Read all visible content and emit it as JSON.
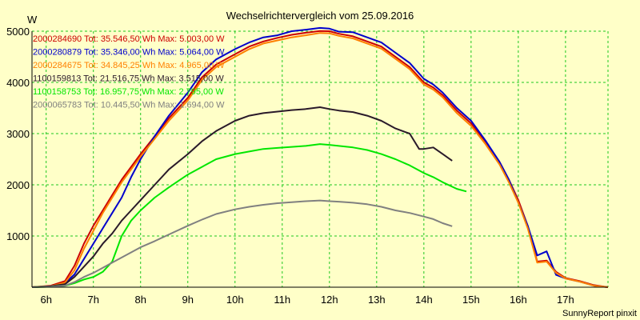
{
  "chart_data": {
    "type": "line",
    "title": "Wechselrichtervergleich vom 25.09.2016",
    "ylabel": "W",
    "footer": "SunnyReport pinxit",
    "ylim": [
      0,
      5000
    ],
    "xlim": [
      5.7,
      17.9
    ],
    "y_ticks": [
      1000,
      2000,
      3000,
      4000,
      5000
    ],
    "y_tick_labels": [
      "1000",
      "2000",
      "3000",
      "4000",
      "5000"
    ],
    "x_ticks": [
      6,
      7,
      8,
      9,
      10,
      11,
      12,
      13,
      14,
      15,
      16,
      17
    ],
    "x_tick_labels": [
      "6h",
      "7h",
      "8h",
      "9h",
      "10h",
      "11h",
      "12h",
      "13h",
      "14h",
      "15h",
      "16h",
      "17h"
    ],
    "grid": true,
    "legend_position": "top-left",
    "colors": {
      "background": "#ffffc8",
      "grid": "#1ec81e",
      "axis": "#000000"
    },
    "series": [
      {
        "name": "2000284690 Tot: 35.546,50 Wh Max: 5.003,00 W",
        "color": "#cc0000",
        "x": [
          5.7,
          6.1,
          6.4,
          6.6,
          6.8,
          7.0,
          7.2,
          7.4,
          7.6,
          7.8,
          8.0,
          8.3,
          8.6,
          9.0,
          9.3,
          9.6,
          10.0,
          10.3,
          10.6,
          10.9,
          11.2,
          11.5,
          11.8,
          12.0,
          12.2,
          12.5,
          12.8,
          13.1,
          13.4,
          13.7,
          14.0,
          14.2,
          14.4,
          14.7,
          15.0,
          15.3,
          15.6,
          15.8,
          16.0,
          16.2,
          16.4,
          16.6,
          16.8,
          17.0,
          17.3,
          17.6,
          17.9
        ],
        "y": [
          0,
          30,
          120,
          420,
          850,
          1200,
          1500,
          1800,
          2100,
          2350,
          2600,
          2950,
          3300,
          3700,
          4100,
          4350,
          4550,
          4700,
          4800,
          4870,
          4930,
          4970,
          5003,
          5000,
          4950,
          4900,
          4800,
          4700,
          4500,
          4300,
          4000,
          3900,
          3750,
          3450,
          3200,
          2850,
          2450,
          2100,
          1700,
          1200,
          500,
          520,
          300,
          180,
          120,
          40,
          0
        ]
      },
      {
        "name": "2000280879 Tot: 35.346,00 Wh Max: 5.064,00 W",
        "color": "#0000cc",
        "x": [
          5.7,
          6.1,
          6.4,
          6.6,
          6.8,
          7.0,
          7.2,
          7.4,
          7.6,
          7.8,
          8.0,
          8.3,
          8.6,
          9.0,
          9.3,
          9.6,
          10.0,
          10.3,
          10.6,
          10.9,
          11.2,
          11.5,
          11.8,
          12.0,
          12.2,
          12.5,
          12.8,
          13.1,
          13.4,
          13.7,
          14.0,
          14.2,
          14.4,
          14.7,
          15.0,
          15.3,
          15.6,
          15.8,
          16.0,
          16.2,
          16.4,
          16.6,
          16.8,
          17.0,
          17.3,
          17.6,
          17.9
        ],
        "y": [
          0,
          20,
          80,
          250,
          550,
          850,
          1150,
          1450,
          1750,
          2150,
          2500,
          2950,
          3350,
          3800,
          4200,
          4450,
          4650,
          4780,
          4880,
          4920,
          5000,
          5030,
          5064,
          5050,
          4990,
          4980,
          4880,
          4780,
          4580,
          4380,
          4070,
          3960,
          3800,
          3500,
          3250,
          2870,
          2450,
          2100,
          1650,
          1200,
          620,
          700,
          240,
          170,
          110,
          30,
          0
        ]
      },
      {
        "name": "2000284675 Tot: 34.845,25 Wh Max: 4.965,00 W",
        "color": "#ff8000",
        "x": [
          5.7,
          6.1,
          6.4,
          6.6,
          6.8,
          7.0,
          7.2,
          7.4,
          7.6,
          7.8,
          8.0,
          8.3,
          8.6,
          9.0,
          9.3,
          9.6,
          10.0,
          10.3,
          10.6,
          10.9,
          11.2,
          11.5,
          11.8,
          12.0,
          12.2,
          12.5,
          12.8,
          13.1,
          13.4,
          13.7,
          14.0,
          14.2,
          14.4,
          14.7,
          15.0,
          15.3,
          15.6,
          15.8,
          16.0,
          16.2,
          16.4,
          16.6,
          16.8,
          17.0,
          17.3,
          17.6,
          17.9
        ],
        "y": [
          0,
          20,
          90,
          330,
          750,
          1100,
          1450,
          1750,
          2050,
          2300,
          2550,
          2900,
          3250,
          3650,
          4050,
          4300,
          4500,
          4650,
          4760,
          4820,
          4880,
          4920,
          4965,
          4960,
          4910,
          4860,
          4760,
          4660,
          4460,
          4260,
          3960,
          3860,
          3710,
          3400,
          3150,
          2800,
          2400,
          2050,
          1650,
          1150,
          480,
          500,
          280,
          170,
          110,
          30,
          0
        ]
      },
      {
        "name": "1100159813 Tot: 21.516,75 Wh Max: 3.515,00 W",
        "color": "#2a1a2a",
        "x": [
          5.7,
          6.1,
          6.4,
          6.6,
          6.8,
          7.0,
          7.2,
          7.4,
          7.6,
          7.8,
          8.0,
          8.3,
          8.6,
          9.0,
          9.3,
          9.6,
          10.0,
          10.3,
          10.6,
          10.9,
          11.2,
          11.5,
          11.8,
          12.0,
          12.2,
          12.5,
          12.8,
          13.1,
          13.4,
          13.7,
          13.9,
          14.0,
          14.2,
          14.4,
          14.6
        ],
        "y": [
          0,
          20,
          60,
          200,
          400,
          600,
          850,
          1050,
          1300,
          1500,
          1700,
          2000,
          2300,
          2600,
          2850,
          3050,
          3250,
          3350,
          3400,
          3430,
          3460,
          3480,
          3515,
          3480,
          3450,
          3420,
          3350,
          3250,
          3100,
          3000,
          2700,
          2700,
          2730,
          2600,
          2470
        ]
      },
      {
        "name": "1100158753 Tot: 16.957,75 Wh Max: 2.795,00 W",
        "color": "#00e600",
        "x": [
          5.7,
          6.1,
          6.4,
          6.6,
          6.8,
          7.0,
          7.2,
          7.4,
          7.6,
          7.8,
          8.0,
          8.3,
          8.6,
          9.0,
          9.3,
          9.6,
          10.0,
          10.3,
          10.6,
          10.9,
          11.2,
          11.5,
          11.8,
          12.0,
          12.2,
          12.5,
          12.8,
          13.1,
          13.4,
          13.7,
          14.0,
          14.2,
          14.4,
          14.7,
          14.9
        ],
        "y": [
          0,
          10,
          30,
          80,
          150,
          200,
          300,
          500,
          1000,
          1300,
          1500,
          1750,
          1950,
          2200,
          2350,
          2500,
          2600,
          2650,
          2700,
          2720,
          2740,
          2760,
          2795,
          2780,
          2760,
          2730,
          2680,
          2600,
          2500,
          2380,
          2230,
          2150,
          2050,
          1920,
          1870
        ]
      },
      {
        "name": "2000065783 Tot: 10.445,50 Wh Max: 1.694,00 W",
        "color": "#808080",
        "x": [
          5.7,
          6.1,
          6.4,
          6.6,
          6.8,
          7.0,
          7.2,
          7.4,
          7.6,
          7.8,
          8.0,
          8.3,
          8.6,
          9.0,
          9.3,
          9.6,
          10.0,
          10.3,
          10.6,
          10.9,
          11.2,
          11.5,
          11.8,
          12.0,
          12.2,
          12.5,
          12.8,
          13.1,
          13.4,
          13.7,
          14.0,
          14.2,
          14.4,
          14.6
        ],
        "y": [
          0,
          10,
          30,
          100,
          200,
          280,
          380,
          480,
          580,
          680,
          780,
          900,
          1030,
          1200,
          1320,
          1430,
          1520,
          1570,
          1610,
          1640,
          1660,
          1680,
          1694,
          1680,
          1670,
          1650,
          1620,
          1570,
          1500,
          1450,
          1380,
          1330,
          1250,
          1190
        ]
      }
    ]
  }
}
